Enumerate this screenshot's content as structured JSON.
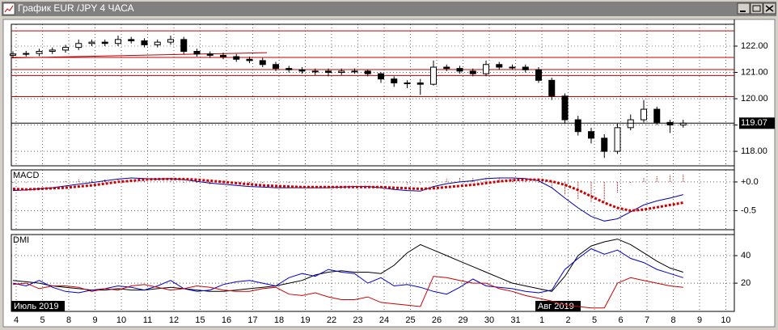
{
  "window": {
    "title": "График EUR /JPY  4 ЧАСА"
  },
  "time_axis": {
    "days": [
      "4",
      "5",
      "8",
      "9",
      "10",
      "11",
      "12",
      "15",
      "16",
      "17",
      "18",
      "19",
      "22",
      "23",
      "24",
      "25",
      "26",
      "29",
      "30",
      "31",
      "1",
      "2",
      "5",
      "6",
      "7",
      "8",
      "9",
      "10"
    ],
    "months": [
      "Июль 2019",
      "Авг 2019"
    ]
  },
  "chart_data": [
    {
      "type": "candlestick",
      "open": [
        121.65,
        121.7,
        121.72,
        121.8,
        121.85,
        121.95,
        122.1,
        122.15,
        122.1,
        122.25,
        122.2,
        122.05,
        122.15,
        122.25,
        121.8,
        121.7,
        121.65,
        121.6,
        121.5,
        121.45,
        121.3,
        121.15,
        121.1,
        121.05,
        121.05,
        121.0,
        121.05,
        121.05,
        120.95,
        120.75,
        120.6,
        120.6,
        120.55,
        121.2,
        121.15,
        121.05,
        120.95,
        121.3,
        121.2,
        121.2,
        121.1,
        120.7,
        120.1,
        119.2,
        118.75,
        118.5,
        118.0,
        118.9,
        119.2,
        119.6,
        119.1,
        119.0
      ],
      "high": [
        121.8,
        121.82,
        121.9,
        121.95,
        122.05,
        122.25,
        122.25,
        122.25,
        122.4,
        122.35,
        122.3,
        122.25,
        122.4,
        122.35,
        121.9,
        121.8,
        121.75,
        121.7,
        121.6,
        121.55,
        121.4,
        121.25,
        121.2,
        121.15,
        121.15,
        121.15,
        121.15,
        121.1,
        121.0,
        120.85,
        120.7,
        120.75,
        121.45,
        121.3,
        121.25,
        121.15,
        121.45,
        121.4,
        121.3,
        121.3,
        121.2,
        120.8,
        120.2,
        119.35,
        118.9,
        118.65,
        119.05,
        119.4,
        119.95,
        119.7,
        119.2,
        119.2
      ],
      "low": [
        121.55,
        121.6,
        121.62,
        121.7,
        121.75,
        121.85,
        122.0,
        122.0,
        122.0,
        122.1,
        121.95,
        121.95,
        122.05,
        121.7,
        121.6,
        121.55,
        121.5,
        121.4,
        121.35,
        121.2,
        121.05,
        121.0,
        120.95,
        120.9,
        120.85,
        120.9,
        120.95,
        120.85,
        120.6,
        120.45,
        120.4,
        120.15,
        120.5,
        121.05,
        120.95,
        120.85,
        120.85,
        121.1,
        121.1,
        121.0,
        120.6,
        119.95,
        119.05,
        118.6,
        118.3,
        117.75,
        117.9,
        118.8,
        119.1,
        119.0,
        118.7,
        118.9
      ],
      "close": [
        121.7,
        121.72,
        121.8,
        121.85,
        121.95,
        122.1,
        122.15,
        122.1,
        122.25,
        122.2,
        122.05,
        122.15,
        122.25,
        121.8,
        121.7,
        121.65,
        121.6,
        121.5,
        121.45,
        121.3,
        121.15,
        121.1,
        121.05,
        121.05,
        121.0,
        121.05,
        121.05,
        120.95,
        120.75,
        120.6,
        120.6,
        120.55,
        121.2,
        121.15,
        121.05,
        120.95,
        121.3,
        121.2,
        121.2,
        121.1,
        120.7,
        120.1,
        119.2,
        118.75,
        118.5,
        118.0,
        118.9,
        119.2,
        119.6,
        119.1,
        119.0,
        119.07
      ],
      "hlines": [
        122.58,
        121.57,
        121.11,
        120.88,
        120.08
      ],
      "hline_color": "#c00000",
      "trendline": [
        121.55,
        121.75
      ],
      "trend_color": "#c00000",
      "last_price": 119.07,
      "ylim": [
        117.45,
        122.83
      ],
      "yticks": [
        {
          "value": 118,
          "label": "118.00"
        },
        {
          "value": 119,
          "label": "119.00"
        },
        {
          "value": 120,
          "label": "120.00"
        },
        {
          "value": 121,
          "label": "121.00"
        },
        {
          "value": 122,
          "label": "122.00"
        }
      ],
      "grid": true
    },
    {
      "type": "line",
      "title": "MACD",
      "series": [
        {
          "color": "#cc0000",
          "draw": "bar",
          "values": [
            -0.03,
            -0.01,
            0,
            0.01,
            0.03,
            0.04,
            0.05,
            0.05,
            0.05,
            0.05,
            0.02,
            0,
            0.01,
            -0.01,
            -0.03,
            -0.04,
            -0.04,
            -0.04,
            -0.04,
            -0.03,
            -0.03,
            -0.02,
            -0.01,
            -0.01,
            -0.01,
            0,
            0.01,
            0.01,
            -0.01,
            -0.03,
            -0.04,
            -0.04,
            0.03,
            0.06,
            0.07,
            0.07,
            0.08,
            0.06,
            0.04,
            0.02,
            -0.02,
            -0.11,
            -0.23,
            -0.31,
            -0.35,
            -0.32,
            -0.19,
            -0.02,
            0.08,
            0.11,
            0.12,
            0.14
          ]
        },
        {
          "color": "#0000aa",
          "draw": "line",
          "values": [
            -0.15,
            -0.14,
            -0.12,
            -0.1,
            -0.07,
            -0.04,
            -0.01,
            0.02,
            0.05,
            0.07,
            0.06,
            0.05,
            0.06,
            0.04,
            0.01,
            -0.02,
            -0.04,
            -0.06,
            -0.08,
            -0.09,
            -0.1,
            -0.1,
            -0.1,
            -0.1,
            -0.1,
            -0.09,
            -0.08,
            -0.08,
            -0.1,
            -0.13,
            -0.15,
            -0.16,
            -0.08,
            -0.03,
            0.0,
            0.02,
            0.06,
            0.07,
            0.07,
            0.06,
            0.02,
            -0.1,
            -0.28,
            -0.45,
            -0.6,
            -0.68,
            -0.64,
            -0.52,
            -0.4,
            -0.33,
            -0.28,
            -0.22
          ]
        },
        {
          "color": "#cc0000",
          "draw": "dots",
          "values": [
            -0.12,
            -0.13,
            -0.12,
            -0.11,
            -0.1,
            -0.08,
            -0.06,
            -0.03,
            0.0,
            0.02,
            0.04,
            0.05,
            0.05,
            0.05,
            0.04,
            0.02,
            0.0,
            -0.02,
            -0.04,
            -0.06,
            -0.07,
            -0.08,
            -0.09,
            -0.09,
            -0.09,
            -0.09,
            -0.09,
            -0.09,
            -0.09,
            -0.1,
            -0.11,
            -0.12,
            -0.11,
            -0.09,
            -0.07,
            -0.05,
            -0.02,
            0.01,
            0.03,
            0.04,
            0.04,
            0.01,
            -0.05,
            -0.14,
            -0.25,
            -0.36,
            -0.45,
            -0.5,
            -0.48,
            -0.44,
            -0.4,
            -0.36
          ]
        }
      ],
      "ylim": [
        -0.83,
        0.21
      ],
      "yticks": [
        {
          "value": 0,
          "label": "+0.0"
        },
        -0.5
      ],
      "grid": true
    },
    {
      "type": "line",
      "title": "DMI",
      "series": [
        {
          "color": "#000000",
          "draw": "line",
          "values": [
            22,
            21,
            20,
            18,
            17,
            16,
            15,
            15,
            16,
            15,
            15,
            16,
            17,
            16,
            15,
            14,
            14,
            15,
            16,
            17,
            18,
            20,
            22,
            26,
            28,
            29,
            28,
            28,
            27,
            33,
            42,
            48,
            44,
            40,
            36,
            32,
            28,
            24,
            20,
            18,
            16,
            14,
            25,
            40,
            47,
            50,
            52,
            48,
            42,
            36,
            31,
            28
          ]
        },
        {
          "color": "#0000cc",
          "draw": "line",
          "values": [
            20,
            18,
            22,
            17,
            14,
            13,
            15,
            16,
            18,
            17,
            15,
            18,
            22,
            16,
            14,
            15,
            19,
            21,
            22,
            20,
            18,
            24,
            27,
            25,
            30,
            28,
            27,
            20,
            24,
            18,
            19,
            17,
            14,
            12,
            17,
            23,
            18,
            17,
            16,
            14,
            13,
            15,
            30,
            38,
            45,
            41,
            44,
            38,
            35,
            30,
            27,
            24
          ]
        },
        {
          "color": "#cc0000",
          "draw": "line",
          "values": [
            19,
            20,
            16,
            18,
            18,
            17,
            14,
            16,
            15,
            18,
            19,
            17,
            15,
            16,
            18,
            17,
            15,
            14,
            14,
            16,
            17,
            12,
            11,
            13,
            10,
            8,
            8,
            10,
            6,
            5,
            4,
            3,
            25,
            24,
            22,
            20,
            20,
            16,
            14,
            11,
            9,
            7,
            4,
            3,
            2,
            2,
            20,
            24,
            22,
            20,
            18,
            17
          ]
        }
      ],
      "ylim": [
        -0.5,
        55.3
      ],
      "yticks": [
        20,
        40
      ],
      "grid": true
    }
  ]
}
